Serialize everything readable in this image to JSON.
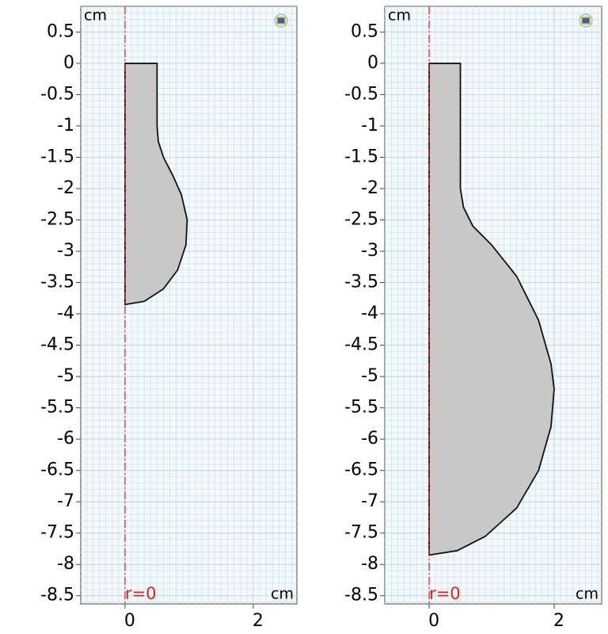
{
  "chart_data": [
    {
      "type": "area",
      "y_unit": "cm",
      "x_unit": "cm",
      "axis_label": "r=0",
      "color": "#c8c8c8",
      "grid": true,
      "x": [
        0,
        0.5,
        0.5,
        0.52,
        0.6,
        0.75,
        0.88,
        0.97,
        0.95,
        0.82,
        0.6,
        0.3,
        0
      ],
      "values": [
        0,
        0,
        -1,
        -1.25,
        -1.5,
        -1.8,
        -2.1,
        -2.5,
        -2.9,
        -3.3,
        -3.6,
        -3.8,
        -3.85
      ],
      "xlim": [
        -0.69,
        2.68
      ],
      "ylim": [
        -8.63,
        0.91
      ],
      "xticks": [
        0,
        2
      ],
      "yticks": [
        0.5,
        0,
        -0.5,
        -1,
        -1.5,
        -2,
        -2.5,
        -3,
        -3.5,
        -4,
        -4.5,
        -5,
        -5.5,
        -6,
        -6.5,
        -7,
        -7.5,
        -8,
        -8.5
      ]
    },
    {
      "type": "area",
      "y_unit": "cm",
      "x_unit": "cm",
      "axis_label": "r=0",
      "color": "#c8c8c8",
      "grid": true,
      "x": [
        0,
        0.5,
        0.5,
        0.55,
        0.7,
        1.0,
        1.4,
        1.75,
        1.95,
        2.0,
        1.95,
        1.75,
        1.4,
        0.9,
        0.45,
        0
      ],
      "values": [
        0,
        0,
        -2,
        -2.3,
        -2.6,
        -2.9,
        -3.4,
        -4.1,
        -4.8,
        -5.2,
        -5.8,
        -6.5,
        -7.1,
        -7.55,
        -7.78,
        -7.85
      ],
      "xlim": [
        -0.71,
        2.76
      ],
      "ylim": [
        -8.63,
        0.91
      ],
      "xticks": [
        0,
        2
      ],
      "yticks": [
        0.5,
        0,
        -0.5,
        -1,
        -1.5,
        -2,
        -2.5,
        -3,
        -3.5,
        -4,
        -4.5,
        -5,
        -5.5,
        -6,
        -6.5,
        -7,
        -7.5,
        -8,
        -8.5
      ]
    }
  ]
}
